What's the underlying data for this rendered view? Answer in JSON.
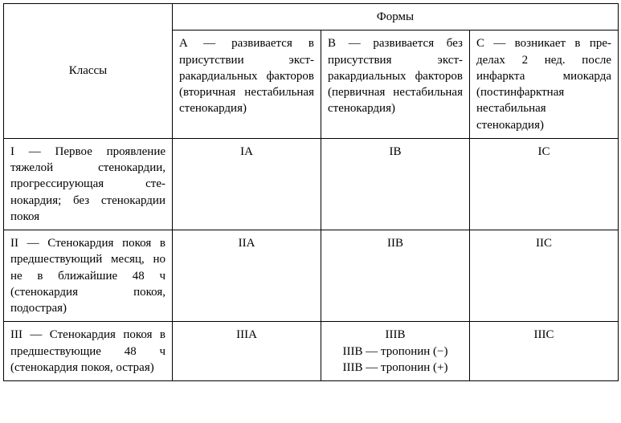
{
  "header": {
    "classes": "Классы",
    "forms": "Формы"
  },
  "forms": {
    "a": "A  —  развивается  в присутствии экст­ракардиальных факторов (вторич­ная нестабильная стенокардия)",
    "b": "B  — развивается без присутствия экст­ракардиальных факторов (первич­ная нестабильная стенокардия)",
    "c": "C — возникает в пре­делах 2 нед. после инфаркта миокар­да (постинфаркт­ная нестабильная стенокардия)"
  },
  "rows": {
    "r1": {
      "label": "I — Первое проявление тяжелой стенокардии, прогрессирующая сте­нокардия; без стено­кардии покоя",
      "a": "IA",
      "b": "IB",
      "c": "IC"
    },
    "r2": {
      "label": "II — Стенокардия покоя в предшествующий ме­сяц, но не в ближай­шие 48 ч (стенокардия покоя, подострая)",
      "a": "IIA",
      "b": "IIB",
      "c": "IIC"
    },
    "r3": {
      "label": "III — Стенокардия покоя в предшествующие 48 ч (стенокардия   покоя, острая)",
      "a": "IIIA",
      "b": "IIIB\nIIIB — тропонин (−)\nIIIB — тропонин (+)",
      "c": "IIIC"
    }
  }
}
